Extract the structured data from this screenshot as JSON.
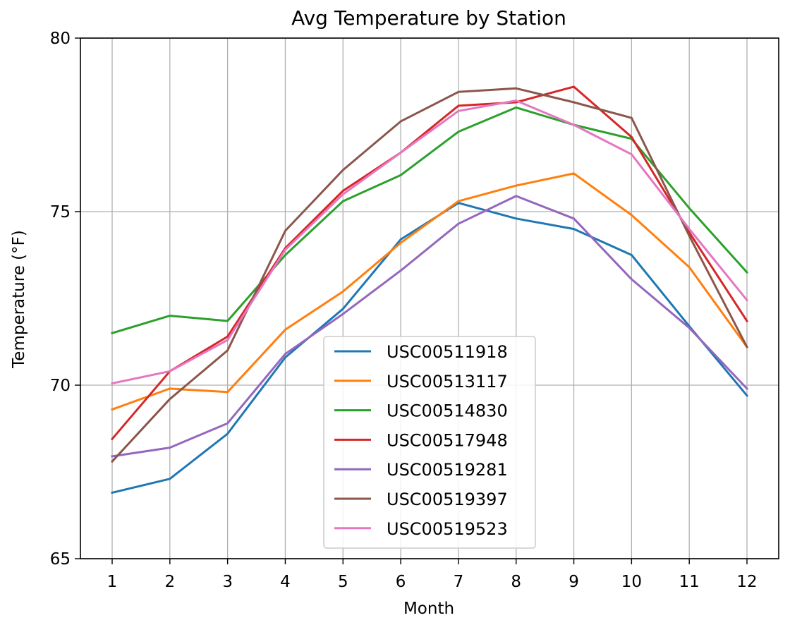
{
  "chart_data": {
    "type": "line",
    "title": "Avg Temperature by Station",
    "xlabel": "Month",
    "ylabel": "Temperature (°F)",
    "x": [
      1,
      2,
      3,
      4,
      5,
      6,
      7,
      8,
      9,
      10,
      11,
      12
    ],
    "xticks": [
      "1",
      "2",
      "3",
      "4",
      "5",
      "6",
      "7",
      "8",
      "9",
      "10",
      "11",
      "12"
    ],
    "xlim": [
      0.45,
      12.55
    ],
    "ylim": [
      65,
      80
    ],
    "yticks": [
      65,
      70,
      75,
      80
    ],
    "grid": true,
    "legend_position": "lower center",
    "series": [
      {
        "name": "USC00511918",
        "color": "#1f77b4",
        "values": [
          66.9,
          67.3,
          68.6,
          70.8,
          72.2,
          74.2,
          75.25,
          74.8,
          74.5,
          73.75,
          71.7,
          69.7
        ]
      },
      {
        "name": "USC00513117",
        "color": "#ff7f0e",
        "values": [
          69.3,
          69.9,
          69.8,
          71.6,
          72.7,
          74.1,
          75.3,
          75.75,
          76.1,
          74.9,
          73.4,
          71.1
        ]
      },
      {
        "name": "USC00514830",
        "color": "#2ca02c",
        "values": [
          71.5,
          72.0,
          71.85,
          73.75,
          75.3,
          76.05,
          77.3,
          78.0,
          77.5,
          77.1,
          75.1,
          73.25
        ]
      },
      {
        "name": "USC00517948",
        "color": "#d62728",
        "values": [
          68.45,
          70.4,
          71.4,
          73.95,
          75.6,
          76.7,
          78.05,
          78.15,
          78.6,
          77.15,
          74.4,
          71.85
        ]
      },
      {
        "name": "USC00519281",
        "color": "#9467bd",
        "values": [
          67.95,
          68.2,
          68.9,
          70.9,
          72.05,
          73.3,
          74.65,
          75.45,
          74.8,
          73.05,
          71.65,
          69.9
        ]
      },
      {
        "name": "USC00519397",
        "color": "#8c564b",
        "values": [
          67.8,
          69.6,
          71.0,
          74.45,
          76.2,
          77.6,
          78.45,
          78.55,
          78.15,
          77.7,
          74.3,
          71.1
        ]
      },
      {
        "name": "USC00519523",
        "color": "#e377c2",
        "values": [
          70.05,
          70.4,
          71.3,
          73.9,
          75.5,
          76.7,
          77.9,
          78.2,
          77.5,
          76.65,
          74.5,
          72.45
        ]
      }
    ]
  }
}
